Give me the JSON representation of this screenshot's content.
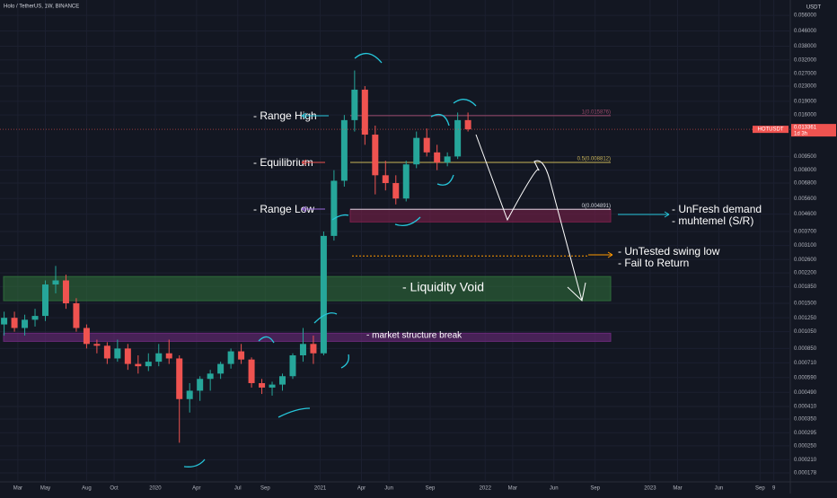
{
  "chart_data": {
    "type": "candlestick",
    "title": "Holo / TetherUS, 1W, BINANCE",
    "y_unit": "USDT",
    "symbol": "HOTUSDT",
    "last_price": {
      "value": 0.013361,
      "label": "0.013361"
    },
    "countdown": "1d 3h",
    "up_color": "#26a69a",
    "down_color": "#ef5350",
    "log_scale": true,
    "x": [
      1,
      1.75,
      2.5,
      3.25,
      4,
      4.75,
      5.5,
      6.25,
      7,
      7.75,
      8.5,
      9.25,
      10,
      10.75,
      11.5,
      12.25,
      13,
      13.75,
      14.5,
      15.25,
      16,
      16.75,
      17.5,
      18.25,
      19,
      19.75,
      20.5,
      21.25,
      22,
      22.75,
      23.5,
      24.25,
      25,
      25.75,
      26.5,
      27.25,
      28,
      28.75,
      29.5,
      30.25,
      31,
      31.75,
      32.5,
      33.25,
      34,
      34.75
    ],
    "open": [
      0.00115,
      0.00125,
      0.0011,
      0.00122,
      0.00128,
      0.0019,
      0.002,
      0.0015,
      0.0011,
      0.0009,
      0.00088,
      0.00075,
      0.00085,
      0.0007,
      0.00068,
      0.00072,
      0.0008,
      0.00075,
      0.00045,
      0.0005,
      0.00058,
      0.00062,
      0.0007,
      0.00082,
      0.00074,
      0.00055,
      0.00052,
      0.00054,
      0.0006,
      0.00078,
      0.0009,
      0.0008,
      0.0035,
      0.007,
      0.015,
      0.022,
      0.0125,
      0.0075,
      0.0068,
      0.0056,
      0.0086,
      0.012,
      0.01,
      0.0088,
      0.0095,
      0.015
    ],
    "high": [
      0.00135,
      0.00135,
      0.0013,
      0.0014,
      0.002,
      0.0024,
      0.00215,
      0.0016,
      0.00115,
      0.00095,
      0.00092,
      0.00095,
      0.0009,
      0.00078,
      0.0008,
      0.0009,
      0.00095,
      0.00078,
      0.00055,
      0.0006,
      0.00065,
      0.00072,
      0.00085,
      0.0009,
      0.00076,
      0.00058,
      0.00056,
      0.00062,
      0.0008,
      0.0011,
      0.001,
      0.0037,
      0.008,
      0.016,
      0.028,
      0.023,
      0.014,
      0.009,
      0.0075,
      0.009,
      0.013,
      0.0135,
      0.011,
      0.01,
      0.0165,
      0.0165
    ],
    "low": [
      0.001,
      0.00105,
      0.001,
      0.00112,
      0.0012,
      0.0017,
      0.0014,
      0.00105,
      0.00085,
      0.0008,
      0.0007,
      0.00072,
      0.00065,
      0.00062,
      0.00064,
      0.00068,
      0.0007,
      0.00026,
      0.00038,
      0.00044,
      0.0005,
      0.00058,
      0.00066,
      0.0007,
      0.00052,
      0.00048,
      0.00047,
      0.0005,
      0.00058,
      0.00072,
      0.0007,
      0.00078,
      0.0033,
      0.0065,
      0.013,
      0.011,
      0.0059,
      0.0062,
      0.0052,
      0.0054,
      0.0082,
      0.0095,
      0.008,
      0.0084,
      0.0092,
      0.013
    ],
    "close": [
      0.00125,
      0.0011,
      0.00122,
      0.00128,
      0.0019,
      0.002,
      0.0015,
      0.0011,
      0.0009,
      0.00088,
      0.00075,
      0.00085,
      0.0007,
      0.00068,
      0.00072,
      0.0008,
      0.00075,
      0.00045,
      0.0005,
      0.00058,
      0.00062,
      0.0007,
      0.00082,
      0.00074,
      0.00055,
      0.00052,
      0.00054,
      0.0006,
      0.00078,
      0.0009,
      0.0008,
      0.0035,
      0.007,
      0.015,
      0.022,
      0.0125,
      0.0075,
      0.0068,
      0.0056,
      0.0086,
      0.012,
      0.01,
      0.0088,
      0.0095,
      0.015,
      0.013361
    ],
    "xlim": [
      0.7,
      58.2
    ],
    "ylim": [
      0.000159,
      0.0679
    ],
    "xticks": [
      {
        "value": 2,
        "label": "Mar"
      },
      {
        "value": 4,
        "label": "May"
      },
      {
        "value": 7,
        "label": "Aug"
      },
      {
        "value": 9,
        "label": "Oct"
      },
      {
        "value": 12,
        "label": "2020"
      },
      {
        "value": 15,
        "label": "Apr"
      },
      {
        "value": 18,
        "label": "Jul"
      },
      {
        "value": 20,
        "label": "Sep"
      },
      {
        "value": 24,
        "label": "2021"
      },
      {
        "value": 27,
        "label": "Apr"
      },
      {
        "value": 29,
        "label": "Jun"
      },
      {
        "value": 32,
        "label": "Sep"
      },
      {
        "value": 36,
        "label": "2022"
      },
      {
        "value": 38,
        "label": "Mar"
      },
      {
        "value": 41,
        "label": "Jun"
      },
      {
        "value": 44,
        "label": "Sep"
      },
      {
        "value": 48,
        "label": "2023"
      },
      {
        "value": 50,
        "label": "Mar"
      },
      {
        "value": 53,
        "label": "Jun"
      },
      {
        "value": 56,
        "label": "Sep"
      },
      {
        "value": 57,
        "label": "9"
      }
    ],
    "yticks": [
      {
        "value": 0.056,
        "label": "0.056000"
      },
      {
        "value": 0.046,
        "label": "0.046000"
      },
      {
        "value": 0.038,
        "label": "0.038000"
      },
      {
        "value": 0.032,
        "label": "0.032000"
      },
      {
        "value": 0.027,
        "label": "0.027000"
      },
      {
        "value": 0.023,
        "label": "0.023000"
      },
      {
        "value": 0.019,
        "label": "0.019000"
      },
      {
        "value": 0.016,
        "label": "0.016000"
      },
      {
        "value": 0.0095,
        "label": "0.009500"
      },
      {
        "value": 0.008,
        "label": "0.008000"
      },
      {
        "value": 0.0068,
        "label": "0.006800"
      },
      {
        "value": 0.0056,
        "label": "0.005600"
      },
      {
        "value": 0.0046,
        "label": "0.004600"
      },
      {
        "value": 0.0037,
        "label": "0.003700"
      },
      {
        "value": 0.0031,
        "label": "0.003100"
      },
      {
        "value": 0.0026,
        "label": "0.002600"
      },
      {
        "value": 0.0022,
        "label": "0.002200"
      },
      {
        "value": 0.00185,
        "label": "0.001850"
      },
      {
        "value": 0.0015,
        "label": "0.001500"
      },
      {
        "value": 0.00125,
        "label": "0.001250"
      },
      {
        "value": 0.00105,
        "label": "0.001050"
      },
      {
        "value": 0.00085,
        "label": "0.000850"
      },
      {
        "value": 0.00071,
        "label": "0.000710"
      },
      {
        "value": 0.00059,
        "label": "0.000590"
      },
      {
        "value": 0.00049,
        "label": "0.000490"
      },
      {
        "value": 0.00041,
        "label": "0.000410"
      },
      {
        "value": 0.00035,
        "label": "0.000350"
      },
      {
        "value": 0.000295,
        "label": "0.000295"
      },
      {
        "value": 0.00025,
        "label": "0.000250"
      },
      {
        "value": 0.00021,
        "label": "0.000210"
      },
      {
        "value": 0.000178,
        "label": "0.000178"
      }
    ],
    "levels": [
      {
        "value": 0.015876,
        "label": "1(0.015876)",
        "color": "#9c4a6b"
      },
      {
        "value": 0.008812,
        "label": "0.5(0.008812)",
        "color": "#c9b458"
      },
      {
        "value": 0.004891,
        "label": "0(0.004891)",
        "color": "#d1d4dc"
      }
    ],
    "zones": [
      {
        "low": 0.00417,
        "high": 0.004891,
        "color": "#7a1f4a"
      },
      {
        "low": 0.00155,
        "high": 0.0021,
        "color": "#2e6b3a"
      },
      {
        "low": 0.00093,
        "high": 0.00103,
        "color": "#6a2a7a"
      }
    ],
    "swing_low": 0.00272,
    "annotations": {
      "range_high": "- Range High",
      "equilibrium": "- Equilibrium",
      "range_low": "- Range Low",
      "unfresh": "- UnFresh demand",
      "muhtemel": "- muhtemel (S/R)",
      "untested": "- UnTested swing low",
      "fail": "- Fail to Return",
      "void": "- Liquidity Void",
      "msb": "- market structure break"
    }
  }
}
